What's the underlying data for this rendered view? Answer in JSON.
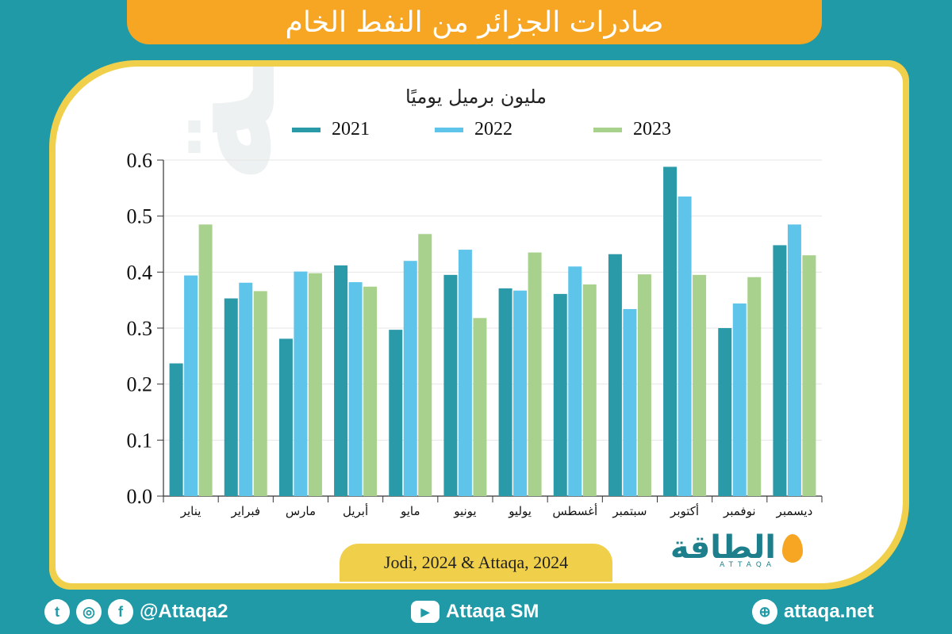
{
  "title": "صادرات الجزائر من النفط الخام",
  "chart_data": {
    "type": "bar",
    "ylabel": "مليون برميل يوميًا",
    "ylim": [
      0,
      0.6
    ],
    "yticks": [
      "0.0",
      "0.1",
      "0.2",
      "0.3",
      "0.4",
      "0.5",
      "0.6"
    ],
    "categories": [
      "يناير",
      "فبراير",
      "مارس",
      "أبريل",
      "مايو",
      "يونيو",
      "يوليو",
      "أغسطس",
      "سبتمبر",
      "أكتوبر",
      "نوفمبر",
      "ديسمبر"
    ],
    "series": [
      {
        "name": "2021",
        "color": "#2b9aa8",
        "values": [
          0.237,
          0.353,
          0.281,
          0.412,
          0.297,
          0.395,
          0.371,
          0.361,
          0.432,
          0.588,
          0.3,
          0.448
        ]
      },
      {
        "name": "2022",
        "color": "#5fc4ea",
        "values": [
          0.394,
          0.381,
          0.401,
          0.382,
          0.42,
          0.44,
          0.367,
          0.41,
          0.334,
          0.535,
          0.344,
          0.485
        ]
      },
      {
        "name": "2023",
        "color": "#a9d18e",
        "values": [
          0.485,
          0.366,
          0.398,
          0.374,
          0.468,
          0.318,
          0.435,
          0.378,
          0.396,
          0.395,
          0.391,
          0.43
        ]
      }
    ],
    "legend_position": "top"
  },
  "source": "Jodi, 2024 & Attaqa, 2024",
  "logo": {
    "name": "الطاقة",
    "sub": "ATTAQA"
  },
  "footer": {
    "social_handle": "@Attaqa2",
    "youtube": "Attaqa SM",
    "website": "attaqa.net"
  }
}
